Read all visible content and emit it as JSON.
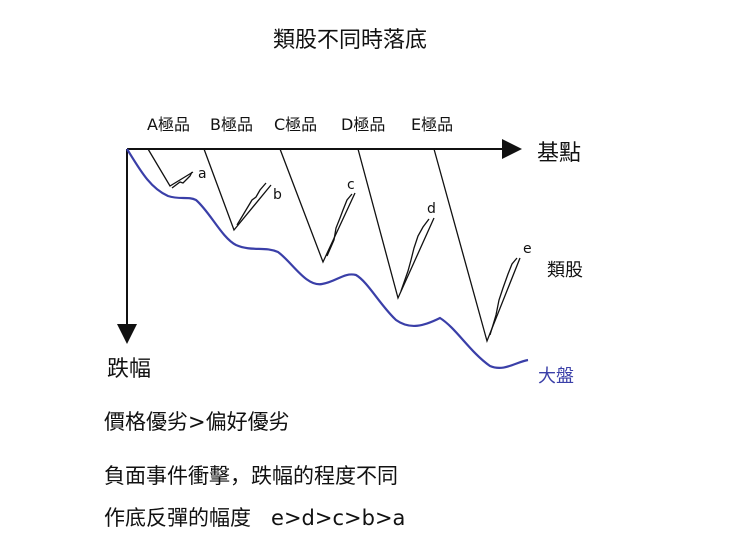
{
  "title": "類股不同時落底",
  "axes": {
    "x_label": "基點",
    "y_label": "跌幅"
  },
  "stocks": [
    {
      "label": "A極品",
      "curve": "a"
    },
    {
      "label": "B極品",
      "curve": "b"
    },
    {
      "label": "C極品",
      "curve": "c"
    },
    {
      "label": "D極品",
      "curve": "d"
    },
    {
      "label": "E極品",
      "curve": "e"
    }
  ],
  "legend": {
    "sector_label": "類股",
    "market_label": "大盤"
  },
  "colors": {
    "market_line": "#3a3fa8",
    "sector_line": "#111111"
  },
  "text": {
    "line1": "價格優劣>偏好優劣",
    "line2": "負面事件衝擊，跌幅的程度不同",
    "line3": "作底反彈的幅度   e>d>c>b>a"
  }
}
